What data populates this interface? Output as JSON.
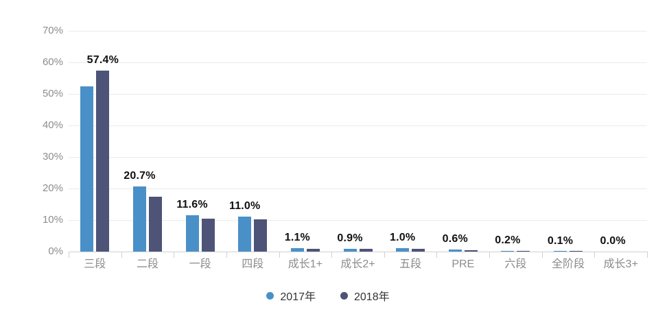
{
  "chart_data": {
    "type": "bar",
    "title": "",
    "categories": [
      "三段",
      "二段",
      "一段",
      "四段",
      "成长1+",
      "成长2+",
      "五段",
      "PRE",
      "六段",
      "全阶段",
      "成长3+"
    ],
    "series": [
      {
        "name": "2017年",
        "color": "#4a90c8",
        "values": [
          52.5,
          20.7,
          11.6,
          11.0,
          1.1,
          0.9,
          1.0,
          0.6,
          0.2,
          0.1,
          0.0
        ]
      },
      {
        "name": "2018年",
        "color": "#4e5378",
        "values": [
          57.4,
          17.4,
          10.4,
          10.2,
          0.9,
          0.8,
          0.8,
          0.5,
          0.15,
          0.05,
          0.0
        ]
      }
    ],
    "data_labels": [
      "57.4%",
      "20.7%",
      "11.6%",
      "11.0%",
      "1.1%",
      "0.9%",
      "1.0%",
      "0.6%",
      "0.2%",
      "0.1%",
      "0.0%"
    ],
    "xlabel": "",
    "ylabel": "",
    "ylim": [
      0,
      70
    ],
    "ytick_step": 10,
    "ytick_labels": [
      "0%",
      "10%",
      "20%",
      "30%",
      "40%",
      "50%",
      "60%",
      "70%"
    ],
    "grid": true,
    "legend_position": "bottom",
    "colors": {
      "grid_line": "#ebebeb",
      "axis_line": "#d0d0d0",
      "axis_text": "#8c8c8c",
      "value_label": "#111111",
      "legend_text": "#333333",
      "background": "#ffffff"
    }
  }
}
